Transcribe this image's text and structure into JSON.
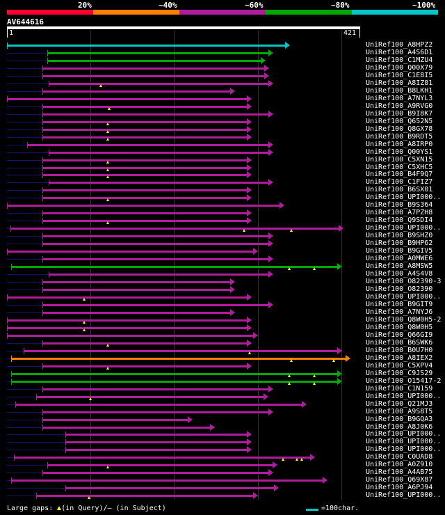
{
  "header": {
    "percent_labels": [
      "20%",
      "~40%",
      "~60%",
      "~80%",
      "~100%"
    ],
    "colors": [
      "#ff0033",
      "#ff7f00",
      "#b01c9c",
      "#00a800",
      "#00c8c8"
    ],
    "query_name": "AV644616",
    "axis_start": "1",
    "axis_end": "421"
  },
  "hits": [
    {
      "label": "UniRef100_A8HPZ2",
      "start": 0,
      "end": 338,
      "color": "#00c8c8",
      "gaps": []
    },
    {
      "label": "UniRef100_A4S6D1",
      "start": 48,
      "end": 318,
      "color": "#00a800",
      "gaps": []
    },
    {
      "label": "UniRef100_C1MZU4",
      "start": 48,
      "end": 309,
      "color": "#00a800",
      "gaps": []
    },
    {
      "label": "UniRef100_Q00X79",
      "start": 42,
      "end": 313,
      "color": "#b01c9c",
      "gaps": []
    },
    {
      "label": "UniRef100_C1E8I5",
      "start": 42,
      "end": 313,
      "color": "#b01c9c",
      "gaps": []
    },
    {
      "label": "UniRef100_A8IZ81",
      "start": 50,
      "end": 318,
      "color": "#b01c9c",
      "gaps": [
        112
      ]
    },
    {
      "label": "UniRef100_B8LKH1",
      "start": 42,
      "end": 272,
      "color": "#b01c9c",
      "gaps": []
    },
    {
      "label": "UniRef100_A7NYL3",
      "start": 0,
      "end": 292,
      "color": "#b01c9c",
      "gaps": []
    },
    {
      "label": "UniRef100_A9RVG0",
      "start": 42,
      "end": 292,
      "color": "#b01c9c",
      "gaps": [
        122
      ]
    },
    {
      "label": "UniRef100_B9I8K7",
      "start": 42,
      "end": 318,
      "color": "#b01c9c",
      "gaps": []
    },
    {
      "label": "UniRef100_Q652N5",
      "start": 42,
      "end": 292,
      "color": "#b01c9c",
      "gaps": [
        120
      ]
    },
    {
      "label": "UniRef100_Q8GX78",
      "start": 42,
      "end": 292,
      "color": "#b01c9c",
      "gaps": [
        120
      ]
    },
    {
      "label": "UniRef100_B9RDT5",
      "start": 42,
      "end": 292,
      "color": "#b01c9c",
      "gaps": [
        120
      ]
    },
    {
      "label": "UniRef100_A8IRP0",
      "start": 24,
      "end": 318,
      "color": "#b01c9c",
      "gaps": []
    },
    {
      "label": "UniRef100_Q00YS1",
      "start": 50,
      "end": 318,
      "color": "#b01c9c",
      "gaps": []
    },
    {
      "label": "UniRef100_C5XN15",
      "start": 42,
      "end": 292,
      "color": "#b01c9c",
      "gaps": [
        120
      ]
    },
    {
      "label": "UniRef100_C5XHC5",
      "start": 42,
      "end": 292,
      "color": "#b01c9c",
      "gaps": [
        120
      ]
    },
    {
      "label": "UniRef100_B4F9Q7",
      "start": 42,
      "end": 292,
      "color": "#b01c9c",
      "gaps": [
        120
      ]
    },
    {
      "label": "UniRef100_C1FIZ7",
      "start": 50,
      "end": 318,
      "color": "#b01c9c",
      "gaps": []
    },
    {
      "label": "UniRef100_B6SX01",
      "start": 42,
      "end": 292,
      "color": "#b01c9c",
      "gaps": []
    },
    {
      "label": "UniRef100_UPI000..",
      "start": 42,
      "end": 292,
      "color": "#b01c9c",
      "gaps": [
        120
      ]
    },
    {
      "label": "UniRef100_B9S364",
      "start": 0,
      "end": 331,
      "color": "#b01c9c",
      "gaps": []
    },
    {
      "label": "UniRef100_A7PZH8",
      "start": 42,
      "end": 292,
      "color": "#b01c9c",
      "gaps": []
    },
    {
      "label": "UniRef100_Q9SDI4",
      "start": 42,
      "end": 292,
      "color": "#b01c9c",
      "gaps": [
        120
      ]
    },
    {
      "label": "UniRef100_UPI000..",
      "start": 4,
      "end": 402,
      "color": "#b01c9c",
      "gaps": [
        283,
        340
      ]
    },
    {
      "label": "UniRef100_B9SHZ0",
      "start": 42,
      "end": 318,
      "color": "#b01c9c",
      "gaps": []
    },
    {
      "label": "UniRef100_B9HP62",
      "start": 42,
      "end": 318,
      "color": "#b01c9c",
      "gaps": []
    },
    {
      "label": "UniRef100_B9GIV5",
      "start": 0,
      "end": 300,
      "color": "#b01c9c",
      "gaps": []
    },
    {
      "label": "UniRef100_A0MWE6",
      "start": 42,
      "end": 318,
      "color": "#b01c9c",
      "gaps": []
    },
    {
      "label": "UniRef100_A8MSW5",
      "start": 5,
      "end": 400,
      "color": "#00a800",
      "gaps": [
        337,
        367
      ]
    },
    {
      "label": "UniRef100_A4S4V8",
      "start": 50,
      "end": 318,
      "color": "#b01c9c",
      "gaps": []
    },
    {
      "label": "UniRef100_O82390-3",
      "start": 42,
      "end": 272,
      "color": "#b01c9c",
      "gaps": []
    },
    {
      "label": "UniRef100_O82390",
      "start": 42,
      "end": 272,
      "color": "#b01c9c",
      "gaps": []
    },
    {
      "label": "UniRef100_UPI000..",
      "start": 0,
      "end": 292,
      "color": "#b01c9c",
      "gaps": [
        92
      ]
    },
    {
      "label": "UniRef100_B9GIT9",
      "start": 42,
      "end": 318,
      "color": "#b01c9c",
      "gaps": []
    },
    {
      "label": "UniRef100_A7NYJ6",
      "start": 42,
      "end": 272,
      "color": "#b01c9c",
      "gaps": []
    },
    {
      "label": "UniRef100_Q8W0H5-2",
      "start": 0,
      "end": 292,
      "color": "#b01c9c",
      "gaps": [
        92
      ]
    },
    {
      "label": "UniRef100_Q8W0H5",
      "start": 0,
      "end": 292,
      "color": "#b01c9c",
      "gaps": [
        92
      ]
    },
    {
      "label": "UniRef100_Q66GI9",
      "start": 0,
      "end": 300,
      "color": "#b01c9c",
      "gaps": []
    },
    {
      "label": "UniRef100_B6SWK6",
      "start": 42,
      "end": 292,
      "color": "#b01c9c",
      "gaps": [
        120
      ]
    },
    {
      "label": "UniRef100_B0U7H0",
      "start": 20,
      "end": 400,
      "color": "#b01c9c",
      "gaps": [
        290
      ]
    },
    {
      "label": "UniRef100_A8IEX2",
      "start": 5,
      "end": 410,
      "color": "#ff7f00",
      "gaps": [
        340,
        390
      ]
    },
    {
      "label": "UniRef100_C5XPV4",
      "start": 42,
      "end": 292,
      "color": "#b01c9c",
      "gaps": [
        120
      ]
    },
    {
      "label": "UniRef100_C9JS29",
      "start": 5,
      "end": 400,
      "color": "#00a800",
      "gaps": [
        337,
        367
      ]
    },
    {
      "label": "UniRef100_O15417-2",
      "start": 5,
      "end": 400,
      "color": "#00a800",
      "gaps": [
        337,
        367
      ]
    },
    {
      "label": "UniRef100_C1N159",
      "start": 42,
      "end": 318,
      "color": "#b01c9c",
      "gaps": []
    },
    {
      "label": "UniRef100_UPI000..",
      "start": 35,
      "end": 312,
      "color": "#b01c9c",
      "gaps": [
        100
      ]
    },
    {
      "label": "UniRef100_Q21MJ3",
      "start": 10,
      "end": 358,
      "color": "#b01c9c",
      "gaps": []
    },
    {
      "label": "UniRef100_A9S8T5",
      "start": 42,
      "end": 318,
      "color": "#b01c9c",
      "gaps": []
    },
    {
      "label": "UniRef100_B9GQA3",
      "start": 42,
      "end": 222,
      "color": "#b01c9c",
      "gaps": []
    },
    {
      "label": "UniRef100_A8J0K6",
      "start": 42,
      "end": 248,
      "color": "#b01c9c",
      "gaps": []
    },
    {
      "label": "UniRef100_UPI000..",
      "start": 70,
      "end": 292,
      "color": "#b01c9c",
      "gaps": []
    },
    {
      "label": "UniRef100_UPI000..",
      "start": 70,
      "end": 292,
      "color": "#b01c9c",
      "gaps": []
    },
    {
      "label": "UniRef100_UPI000..",
      "start": 70,
      "end": 292,
      "color": "#b01c9c",
      "gaps": []
    },
    {
      "label": "UniRef100_C0UAD8",
      "start": 8,
      "end": 368,
      "color": "#b01c9c",
      "gaps": [
        330,
        346,
        352
      ]
    },
    {
      "label": "UniRef100_A0Z910",
      "start": 48,
      "end": 323,
      "color": "#b01c9c",
      "gaps": [
        120
      ]
    },
    {
      "label": "UniRef100_A4AB75",
      "start": 42,
      "end": 318,
      "color": "#b01c9c",
      "gaps": []
    },
    {
      "label": "UniRef100_Q69X87",
      "start": 5,
      "end": 383,
      "color": "#b01c9c",
      "gaps": []
    },
    {
      "label": "UniRef100_A6PJ94",
      "start": 70,
      "end": 325,
      "color": "#b01c9c",
      "gaps": []
    },
    {
      "label": "UniRef100_UPI000..",
      "start": 35,
      "end": 300,
      "color": "#b01c9c",
      "gaps": [
        98
      ]
    }
  ],
  "legend": {
    "large_gaps_prefix": "Large gaps:",
    "in_query": "(in Query)/",
    "in_subject": "– (in Subject)",
    "scale_text": "=100char."
  }
}
